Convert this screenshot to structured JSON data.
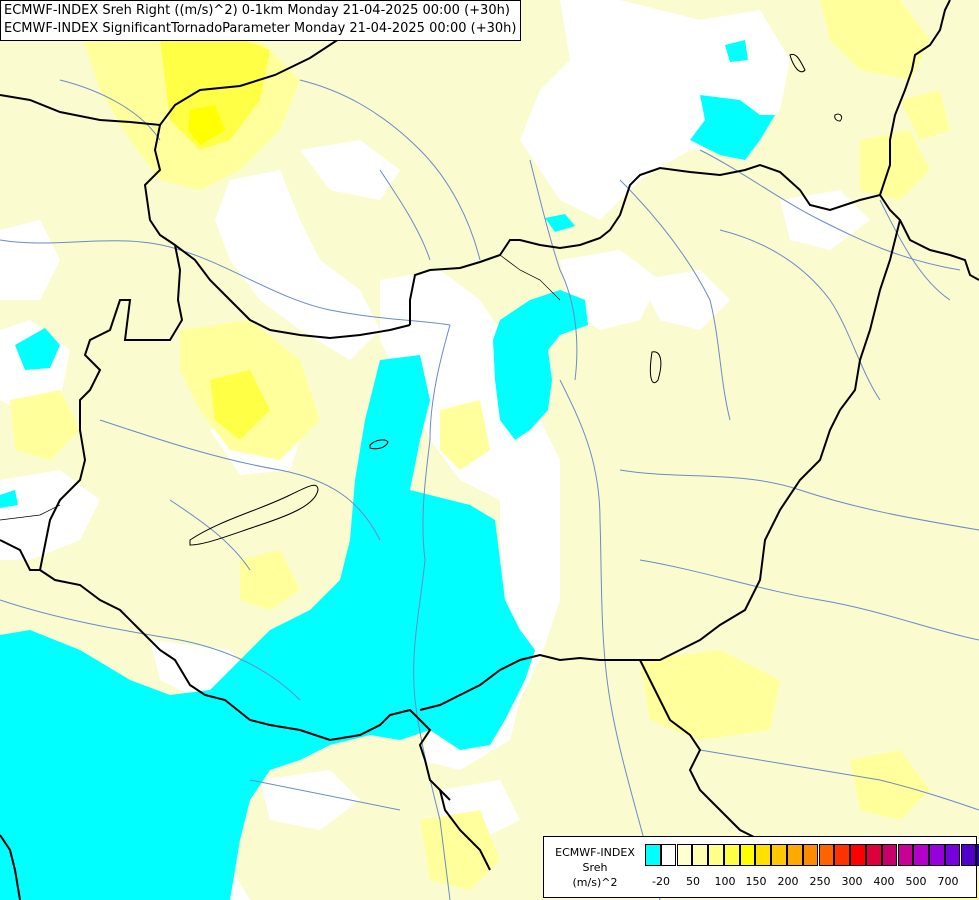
{
  "title": {
    "line1": "ECMWF-INDEX Sreh Right ((m/s)^2) 0-1km Monday 21-04-2025 00:00 (+30h)",
    "line2": "ECMWF-INDEX SignificantTornadoParameter Monday 21-04-2025 00:00 (+30h)"
  },
  "legend": {
    "line1": "ECMWF-INDEX",
    "line2": "Sreh",
    "line3": "(m/s)^2",
    "ticks": [
      "-20",
      "50",
      "100",
      "150",
      "200",
      "250",
      "300",
      "400",
      "500",
      "700"
    ],
    "colors": [
      "#00ffff",
      "#ffffff",
      "#ffffd2",
      "#ffffb4",
      "#ffff8c",
      "#ffff46",
      "#ffff00",
      "#ffe100",
      "#ffc800",
      "#ffaa00",
      "#ff8c00",
      "#ff6400",
      "#ff3200",
      "#ff0000",
      "#dc003c",
      "#c8006e",
      "#c80096",
      "#b400c8",
      "#9600dc",
      "#7800dc",
      "#5000c8",
      "#2800aa",
      "#000096"
    ]
  },
  "map": {
    "fills": {
      "low": "#fbfbd0",
      "mid": "#ffff9c",
      "high": "#ffff46",
      "white": "#ffffff",
      "cyan": "#00ffff"
    },
    "border_color": "#000000",
    "river_color": "#6a8bc6"
  }
}
